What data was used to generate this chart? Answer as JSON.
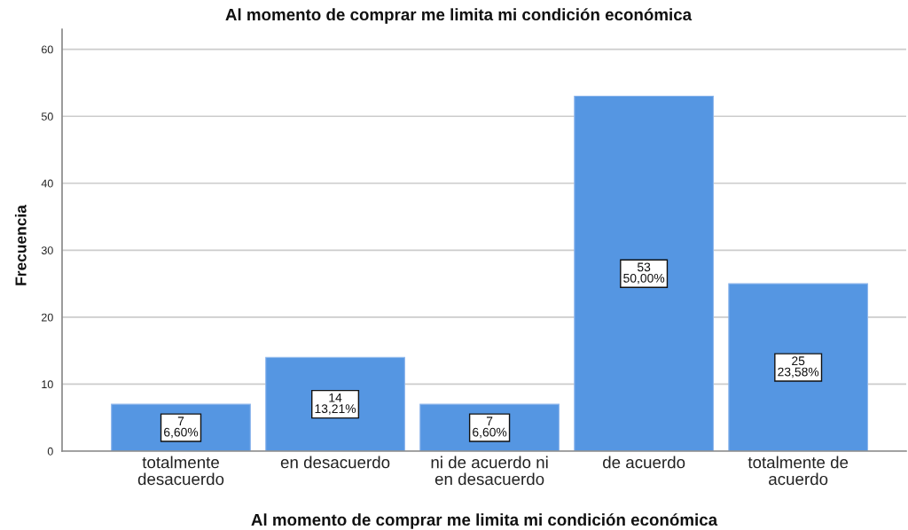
{
  "chart_data": {
    "type": "bar",
    "title": "Al momento de comprar me limita mi condición económica",
    "xlabel": "Al momento de comprar me limita mi condición económica",
    "ylabel": "Frecuencia",
    "categories": [
      "totalmente\ndesacuerdo",
      "en desacuerdo",
      "ni de acuerdo ni\nen desacuerdo",
      "de acuerdo",
      "totalmente de\nacuerdo"
    ],
    "values": [
      7,
      14,
      7,
      53,
      25
    ],
    "color": "#5596e2",
    "value_labels": [
      "7\n6,60%",
      "14\n13,21%",
      "7\n6,60%",
      "53\n50,00%",
      "25\n23,58%"
    ],
    "ylim": [
      0,
      63
    ],
    "yticks": [
      0,
      10,
      20,
      30,
      40,
      50,
      60
    ],
    "grid": "y"
  }
}
